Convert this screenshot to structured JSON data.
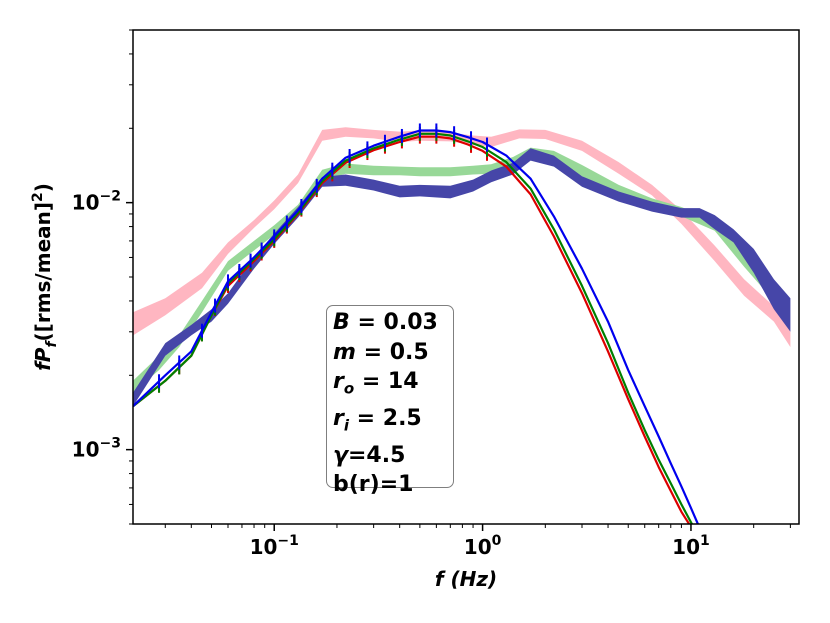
{
  "chart_data": {
    "type": "line",
    "xscale": "log",
    "yscale": "log",
    "xlim": [
      0.021,
      33
    ],
    "ylim": [
      0.0005,
      0.05
    ],
    "xlabel_base": "f",
    "xlabel_unit": "(Hz)",
    "ylabel_base": "fP",
    "ylabel_sub": "f",
    "ylabel_unit": "([rms/mean]",
    "ylabel_sup": "2",
    "ylabel_close": ")",
    "x_ticks": [
      {
        "value": 0.1,
        "base": "10",
        "exp": "−1"
      },
      {
        "value": 1,
        "base": "10",
        "exp": "0"
      },
      {
        "value": 10,
        "base": "10",
        "exp": "1"
      }
    ],
    "y_ticks": [
      {
        "value": 0.001,
        "base": "10",
        "exp": "−3"
      },
      {
        "value": 0.01,
        "base": "10",
        "exp": "−2"
      }
    ],
    "bands": [
      {
        "name": "observed-pink",
        "color": "#ffb6c1",
        "x": [
          0.021,
          0.03,
          0.045,
          0.06,
          0.08,
          0.1,
          0.13,
          0.17,
          0.22,
          0.3,
          0.4,
          0.5,
          0.7,
          0.9,
          1.1,
          1.5,
          2.0,
          3.0,
          4.5,
          6.5,
          9.0,
          13,
          18,
          25,
          30
        ],
        "lo": [
          0.0029,
          0.0035,
          0.0045,
          0.0062,
          0.0079,
          0.0094,
          0.012,
          0.0178,
          0.0185,
          0.0182,
          0.0176,
          0.0178,
          0.0177,
          0.0171,
          0.0168,
          0.0182,
          0.0181,
          0.0162,
          0.0131,
          0.0107,
          0.0082,
          0.0058,
          0.0042,
          0.0033,
          0.0026
        ],
        "hi": [
          0.0036,
          0.0041,
          0.0052,
          0.0069,
          0.0085,
          0.0102,
          0.013,
          0.0197,
          0.0202,
          0.0197,
          0.0194,
          0.0196,
          0.0192,
          0.0187,
          0.0185,
          0.0198,
          0.0197,
          0.0178,
          0.0146,
          0.0118,
          0.0093,
          0.0067,
          0.0049,
          0.0038,
          0.003
        ]
      },
      {
        "name": "observed-green",
        "color": "#98d898",
        "x": [
          0.021,
          0.028,
          0.035,
          0.045,
          0.06,
          0.08,
          0.1,
          0.13,
          0.17,
          0.22,
          0.3,
          0.4,
          0.5,
          0.7,
          0.9,
          1.1,
          1.4,
          1.7,
          2.2,
          3.0,
          4.5,
          6.5,
          9.0,
          13,
          18,
          25
        ],
        "lo": [
          0.0017,
          0.0021,
          0.0026,
          0.0036,
          0.0053,
          0.0064,
          0.0074,
          0.009,
          0.0123,
          0.0131,
          0.0129,
          0.0129,
          0.0128,
          0.0128,
          0.013,
          0.0131,
          0.014,
          0.0152,
          0.0148,
          0.0128,
          0.0108,
          0.0096,
          0.0088,
          0.0077,
          0.0055,
          0.004
        ],
        "hi": [
          0.0019,
          0.0024,
          0.0029,
          0.004,
          0.0058,
          0.007,
          0.0081,
          0.0098,
          0.0136,
          0.0144,
          0.0141,
          0.014,
          0.0139,
          0.0139,
          0.0141,
          0.0143,
          0.0153,
          0.0167,
          0.0162,
          0.0142,
          0.0118,
          0.0104,
          0.0096,
          0.0085,
          0.0062,
          0.0046
        ]
      },
      {
        "name": "observed-navy",
        "color": "#4646a8",
        "x": [
          0.021,
          0.03,
          0.04,
          0.05,
          0.06,
          0.08,
          0.1,
          0.13,
          0.17,
          0.22,
          0.3,
          0.4,
          0.5,
          0.7,
          0.9,
          1.1,
          1.4,
          1.7,
          2.2,
          3.0,
          4.5,
          6.5,
          9.0,
          11,
          13,
          16,
          20,
          25,
          30
        ],
        "lo": [
          0.0015,
          0.0024,
          0.0029,
          0.0033,
          0.0039,
          0.0054,
          0.0068,
          0.0087,
          0.0116,
          0.0117,
          0.0112,
          0.0105,
          0.0106,
          0.0104,
          0.0111,
          0.0121,
          0.013,
          0.0148,
          0.014,
          0.0116,
          0.0101,
          0.0092,
          0.0087,
          0.0087,
          0.0078,
          0.0069,
          0.0052,
          0.0037,
          0.003
        ],
        "hi": [
          0.0017,
          0.0027,
          0.0032,
          0.0037,
          0.0043,
          0.006,
          0.0075,
          0.0096,
          0.0127,
          0.013,
          0.0124,
          0.0117,
          0.0118,
          0.0117,
          0.0124,
          0.0135,
          0.0145,
          0.0166,
          0.0155,
          0.0128,
          0.0111,
          0.0101,
          0.0095,
          0.0095,
          0.0089,
          0.0078,
          0.0065,
          0.0049,
          0.0041
        ]
      }
    ],
    "series": [
      {
        "name": "model-red",
        "color": "#dd0000",
        "x": [
          0.021,
          0.03,
          0.04,
          0.05,
          0.06,
          0.08,
          0.1,
          0.13,
          0.17,
          0.22,
          0.3,
          0.4,
          0.5,
          0.6,
          0.7,
          0.85,
          1.0,
          1.3,
          1.7,
          2.2,
          3.0,
          4.0,
          5.0,
          6.0,
          7.0,
          8.0,
          9.0,
          9.8
        ],
        "y": [
          0.0015,
          0.0019,
          0.0024,
          0.0035,
          0.0046,
          0.0058,
          0.007,
          0.009,
          0.012,
          0.0145,
          0.0163,
          0.0176,
          0.0185,
          0.0185,
          0.0182,
          0.0172,
          0.0162,
          0.014,
          0.0108,
          0.0073,
          0.0043,
          0.0025,
          0.0016,
          0.00113,
          0.00085,
          0.00068,
          0.00056,
          0.0005
        ]
      },
      {
        "name": "model-green",
        "color": "#008000",
        "x": [
          0.021,
          0.03,
          0.04,
          0.05,
          0.06,
          0.08,
          0.1,
          0.13,
          0.17,
          0.22,
          0.3,
          0.4,
          0.5,
          0.6,
          0.7,
          0.85,
          1.0,
          1.3,
          1.7,
          2.2,
          3.0,
          4.0,
          5.0,
          6.0,
          7.0,
          8.0,
          9.0,
          10.1
        ],
        "y": [
          0.0015,
          0.0019,
          0.0024,
          0.0035,
          0.0047,
          0.0059,
          0.0071,
          0.0091,
          0.0122,
          0.0148,
          0.0166,
          0.018,
          0.019,
          0.019,
          0.0187,
          0.0177,
          0.0168,
          0.0146,
          0.0114,
          0.0078,
          0.0046,
          0.0027,
          0.0017,
          0.0012,
          0.00091,
          0.00073,
          0.0006,
          0.0005
        ]
      },
      {
        "name": "model-blue",
        "color": "#0000ee",
        "x": [
          0.021,
          0.03,
          0.04,
          0.05,
          0.06,
          0.08,
          0.1,
          0.13,
          0.17,
          0.22,
          0.3,
          0.4,
          0.5,
          0.6,
          0.7,
          0.85,
          1.0,
          1.3,
          1.7,
          2.2,
          3.0,
          4.0,
          5.0,
          6.0,
          7.0,
          8.0,
          9.0,
          10.0,
          10.8
        ],
        "y": [
          0.0015,
          0.002,
          0.0025,
          0.0036,
          0.0048,
          0.006,
          0.0073,
          0.0093,
          0.0125,
          0.0152,
          0.017,
          0.0185,
          0.0196,
          0.0196,
          0.0193,
          0.0184,
          0.0176,
          0.0155,
          0.0125,
          0.0088,
          0.0054,
          0.0033,
          0.0021,
          0.0015,
          0.00113,
          0.00088,
          0.00071,
          0.00058,
          0.0005
        ]
      }
    ],
    "error_bar_x": [
      0.028,
      0.035,
      0.045,
      0.052,
      0.06,
      0.068,
      0.077,
      0.087,
      0.1,
      0.115,
      0.135,
      0.16,
      0.19,
      0.23,
      0.28,
      0.34,
      0.41,
      0.5,
      0.6,
      0.73,
      0.88,
      1.05
    ]
  },
  "info_box": {
    "lines": [
      {
        "var": "B",
        "sub": "",
        "val": " = 0.03"
      },
      {
        "var": "m",
        "sub": "",
        "val": " = 0.5"
      },
      {
        "var": "r",
        "sub": "o",
        "val": " = 14"
      },
      {
        "var": "r",
        "sub": "i",
        "val": " = 2.5"
      },
      {
        "var": "γ",
        "sub": "",
        "val": "=4.5"
      },
      {
        "var": "",
        "sub": "",
        "val": "b(r)=1"
      }
    ]
  }
}
